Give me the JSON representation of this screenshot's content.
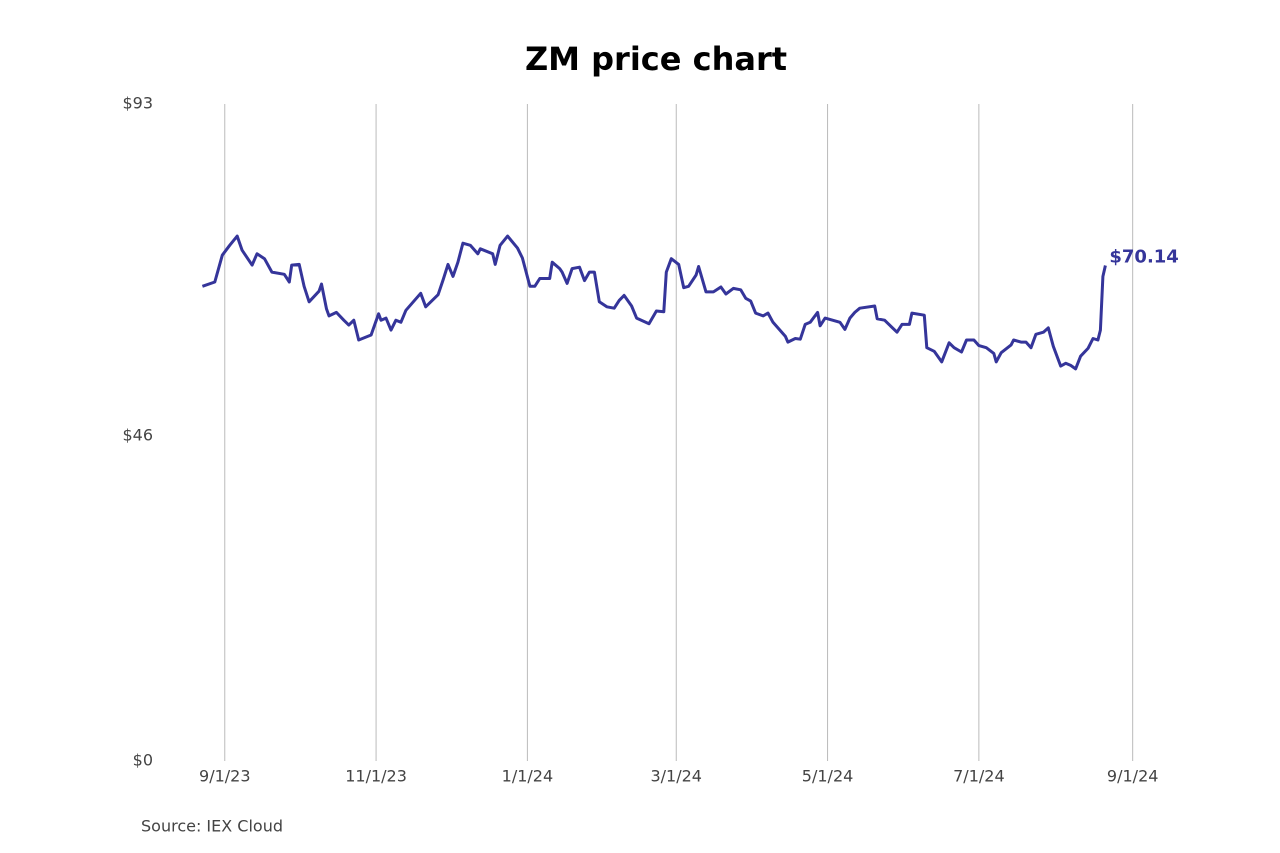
{
  "chart_data": {
    "type": "line",
    "title": "ZM price chart",
    "source": "Source: IEX Cloud",
    "x": [
      "8/23/23",
      "8/28/23",
      "8/31/23",
      "9/3/23",
      "9/6/23",
      "9/8/23",
      "9/12/23",
      "9/14/23",
      "9/17/23",
      "9/20/23",
      "9/25/23",
      "9/27/23",
      "9/28/23",
      "10/1/23",
      "10/3/23",
      "10/5/23",
      "10/9/23",
      "10/10/23",
      "10/12/23",
      "10/13/23",
      "10/16/23",
      "10/19/23",
      "10/21/23",
      "10/23/23",
      "10/25/23",
      "10/30/23",
      "11/2/23",
      "11/3/23",
      "11/5/23",
      "11/7/23",
      "11/9/23",
      "11/11/23",
      "11/13/23",
      "11/16/23",
      "11/19/23",
      "11/21/23",
      "11/26/23",
      "11/28/23",
      "11/30/23",
      "12/2/23",
      "12/4/23",
      "12/6/23",
      "12/9/23",
      "12/12/23",
      "12/13/23",
      "12/18/23",
      "12/19/23",
      "12/21/23",
      "12/24/23",
      "12/28/23",
      "12/30/23",
      "1/2/24",
      "1/4/24",
      "1/6/24",
      "1/10/24",
      "1/11/24",
      "1/14/24",
      "1/15/24",
      "1/17/24",
      "1/19/24",
      "1/22/24",
      "1/24/24",
      "1/26/24",
      "1/28/24",
      "1/30/24",
      "2/2/24",
      "2/5/24",
      "2/7/24",
      "2/9/24",
      "2/12/24",
      "2/14/24",
      "2/19/24",
      "2/22/24",
      "2/25/24",
      "2/26/24",
      "2/28/24",
      "3/2/24",
      "3/4/24",
      "3/6/24",
      "3/9/24",
      "3/10/24",
      "3/13/24",
      "3/16/24",
      "3/19/24",
      "3/21/24",
      "3/24/24",
      "3/27/24",
      "3/29/24",
      "3/31/24",
      "4/2/24",
      "4/5/24",
      "4/7/24",
      "4/9/24",
      "4/14/24",
      "4/15/24",
      "4/18/24",
      "4/20/24",
      "4/22/24",
      "4/24/24",
      "4/27/24",
      "4/28/24",
      "4/30/24",
      "5/6/24",
      "5/8/24",
      "5/10/24",
      "5/12/24",
      "5/14/24",
      "5/20/24",
      "5/21/24",
      "5/24/24",
      "5/26/24",
      "5/29/24",
      "5/31/24",
      "6/3/24",
      "6/4/24",
      "6/9/24",
      "6/10/24",
      "6/13/24",
      "6/16/24",
      "6/19/24",
      "6/21/24",
      "6/24/24",
      "6/26/24",
      "6/29/24",
      "7/1/24",
      "7/4/24",
      "7/7/24",
      "7/8/24",
      "7/10/24",
      "7/14/24",
      "7/15/24",
      "7/18/24",
      "7/20/24",
      "7/22/24",
      "7/24/24",
      "7/27/24",
      "7/29/24",
      "7/31/24",
      "8/3/24",
      "8/5/24",
      "8/7/24",
      "8/9/24",
      "8/11/24",
      "8/14/24",
      "8/16/24",
      "8/18/24",
      "8/19/24",
      "8/20/24",
      "8/21/24"
    ],
    "series": [
      {
        "name": "ZM",
        "color": "#35359a",
        "values": [
          67.2,
          67.8,
          71.6,
          73.0,
          74.3,
          72.3,
          70.2,
          71.8,
          71.1,
          69.2,
          68.9,
          67.8,
          70.2,
          70.3,
          67.2,
          65.0,
          66.5,
          67.5,
          64.0,
          63.0,
          63.5,
          62.4,
          61.7,
          62.4,
          59.6,
          60.3,
          63.3,
          62.4,
          62.7,
          61.0,
          62.4,
          62.1,
          63.8,
          65.0,
          66.2,
          64.3,
          66.0,
          68.1,
          70.3,
          68.6,
          70.6,
          73.3,
          73.0,
          71.8,
          72.5,
          71.8,
          70.3,
          73.0,
          74.3,
          72.6,
          71.2,
          67.2,
          67.2,
          68.3,
          68.3,
          70.6,
          69.7,
          69.2,
          67.6,
          69.7,
          69.9,
          68.0,
          69.2,
          69.2,
          65.0,
          64.3,
          64.1,
          65.2,
          65.9,
          64.4,
          62.7,
          61.9,
          63.7,
          63.6,
          69.2,
          71.1,
          70.3,
          67.0,
          67.2,
          68.8,
          70.0,
          66.4,
          66.4,
          67.1,
          66.1,
          66.9,
          66.7,
          65.5,
          65.1,
          63.4,
          63.0,
          63.4,
          62.1,
          60.1,
          59.3,
          59.8,
          59.7,
          61.8,
          62.1,
          63.5,
          61.6,
          62.7,
          62.1,
          61.1,
          62.7,
          63.5,
          64.1,
          64.4,
          62.6,
          62.4,
          61.7,
          60.7,
          61.8,
          61.8,
          63.4,
          63.1,
          58.5,
          58.0,
          56.5,
          59.2,
          58.5,
          57.9,
          59.6,
          59.6,
          58.8,
          58.5,
          57.7,
          56.5,
          57.8,
          58.9,
          59.6,
          59.3,
          59.3,
          58.5,
          60.4,
          60.7,
          61.3,
          58.7,
          55.9,
          56.3,
          56.0,
          55.5,
          57.3,
          58.4,
          59.8,
          59.6,
          61.0,
          68.6,
          70.14
        ]
      }
    ],
    "annotations": [
      {
        "text": "$70.14",
        "x": "8/21/24",
        "y": 70.14
      }
    ],
    "xlim": [
      "8/20/23",
      "9/10/24"
    ],
    "xticks": [
      "9/1/23",
      "11/1/23",
      "1/1/24",
      "3/1/24",
      "5/1/24",
      "7/1/24",
      "9/1/24"
    ],
    "ylim": [
      0,
      93
    ],
    "yticks": [
      {
        "value": 0,
        "label": "$0"
      },
      {
        "value": 46,
        "label": "$46"
      },
      {
        "value": 93,
        "label": "$93"
      }
    ],
    "grid": "x"
  }
}
